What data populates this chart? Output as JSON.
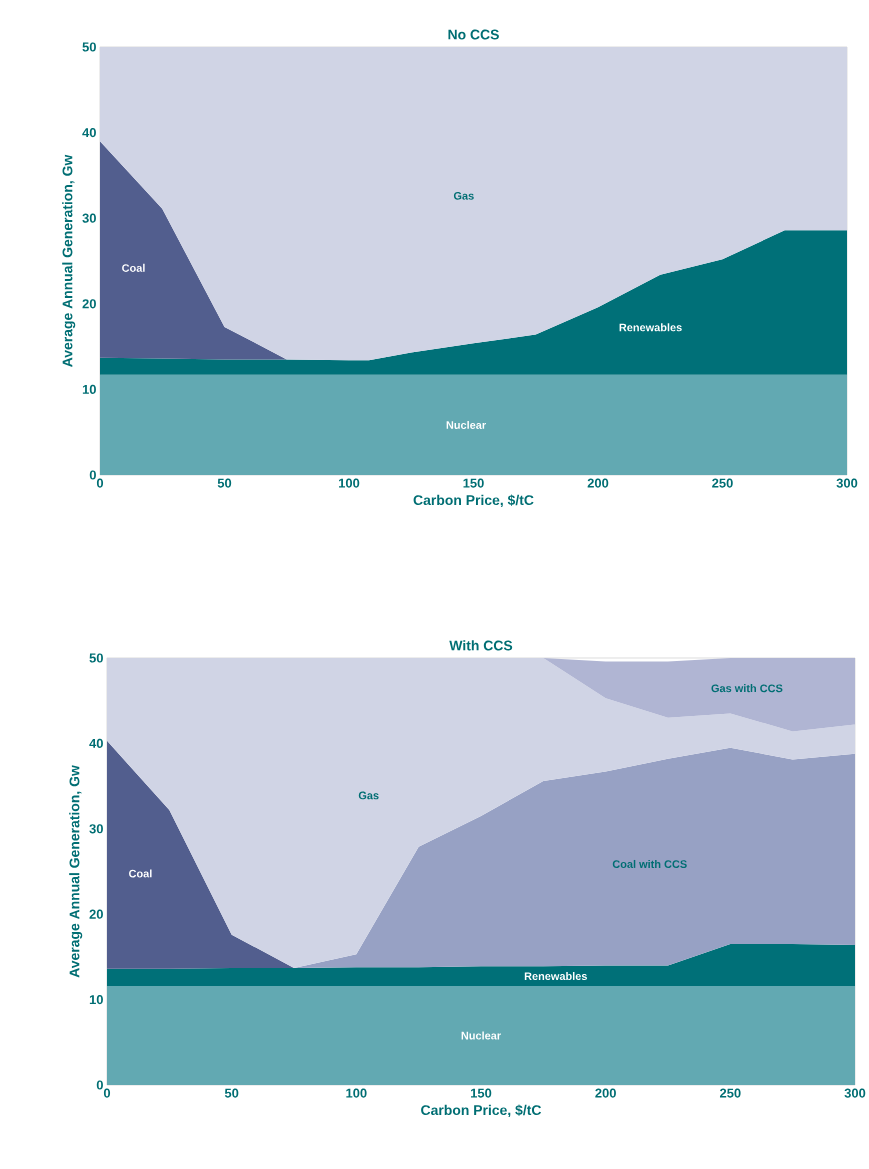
{
  "chart_data": [
    {
      "type": "area",
      "title": "No CCS",
      "xlabel": "Carbon Price, $/tC",
      "ylabel": "Average Annual Generation, Gw",
      "stacked": true,
      "xlim": [
        0,
        300
      ],
      "ylim": [
        0,
        50
      ],
      "xticks": [
        0,
        50,
        100,
        150,
        200,
        250,
        300
      ],
      "yticks": [
        0,
        10,
        20,
        30,
        40,
        50
      ],
      "x": [
        0,
        25,
        50,
        75,
        100,
        108,
        125,
        150,
        175,
        200,
        225,
        250,
        275,
        300
      ],
      "series": [
        {
          "name": "Nuclear",
          "color": "#62a9b2",
          "values": [
            11.7,
            11.7,
            11.7,
            11.7,
            11.7,
            11.7,
            11.7,
            11.7,
            11.7,
            11.7,
            11.7,
            11.7,
            11.7,
            11.7
          ]
        },
        {
          "name": "Renewables",
          "color": "#007078",
          "values": [
            2.0,
            1.9,
            1.8,
            1.8,
            1.7,
            1.7,
            2.6,
            3.7,
            4.7,
            7.9,
            11.7,
            13.5,
            16.9,
            16.9
          ]
        },
        {
          "name": "Coal",
          "color": "#525e8e",
          "values": [
            25.3,
            17.5,
            3.8,
            0,
            null,
            null,
            null,
            null,
            null,
            null,
            null,
            null,
            null,
            null
          ]
        },
        {
          "name": "Gas",
          "color": "#d0d4e5",
          "values": [
            11.0,
            18.9,
            32.7,
            36.5,
            36.6,
            36.6,
            35.7,
            34.6,
            33.6,
            30.4,
            26.6,
            24.8,
            21.4,
            21.4
          ]
        }
      ]
    },
    {
      "type": "area",
      "title": "With CCS",
      "xlabel": "Carbon Price, $/tC",
      "ylabel": "Average Annual Generation, Gw",
      "stacked": true,
      "xlim": [
        0,
        300
      ],
      "ylim": [
        0,
        50
      ],
      "xticks": [
        0,
        50,
        100,
        150,
        200,
        250,
        300
      ],
      "yticks": [
        0,
        10,
        20,
        30,
        40,
        50
      ],
      "x": [
        0,
        25,
        50,
        75,
        100,
        125,
        150,
        175,
        200,
        225,
        250,
        275,
        300
      ],
      "series": [
        {
          "name": "Nuclear",
          "color": "#62a9b2",
          "values": [
            11.6,
            11.6,
            11.6,
            11.6,
            11.6,
            11.6,
            11.6,
            11.6,
            11.6,
            11.6,
            11.6,
            11.6,
            11.6
          ]
        },
        {
          "name": "Renewables",
          "color": "#007078",
          "values": [
            2.0,
            2.0,
            2.1,
            2.1,
            2.2,
            2.2,
            2.3,
            2.3,
            2.4,
            2.4,
            4.9,
            4.9,
            4.8
          ]
        },
        {
          "name": "Coal",
          "color": "#525e8e",
          "values": [
            26.7,
            18.6,
            3.9,
            0,
            null,
            null,
            null,
            null,
            null,
            null,
            null,
            null,
            null
          ]
        },
        {
          "name": "Coal with CCS",
          "color": "#97a1c4",
          "values": [
            null,
            null,
            null,
            0,
            1.5,
            14.1,
            17.6,
            21.7,
            22.7,
            24.2,
            23.0,
            21.6,
            22.4
          ]
        },
        {
          "name": "Gas",
          "color": "#d0d4e5",
          "values": [
            9.7,
            17.8,
            32.4,
            36.3,
            34.7,
            22.1,
            18.5,
            14.4,
            8.6,
            4.8,
            4.0,
            3.3,
            3.4
          ]
        },
        {
          "name": "Gas with CCS",
          "color": "#b0b5d3",
          "values": [
            null,
            null,
            null,
            null,
            null,
            null,
            null,
            0,
            4.3,
            6.6,
            6.5,
            8.6,
            7.8
          ]
        }
      ]
    }
  ]
}
